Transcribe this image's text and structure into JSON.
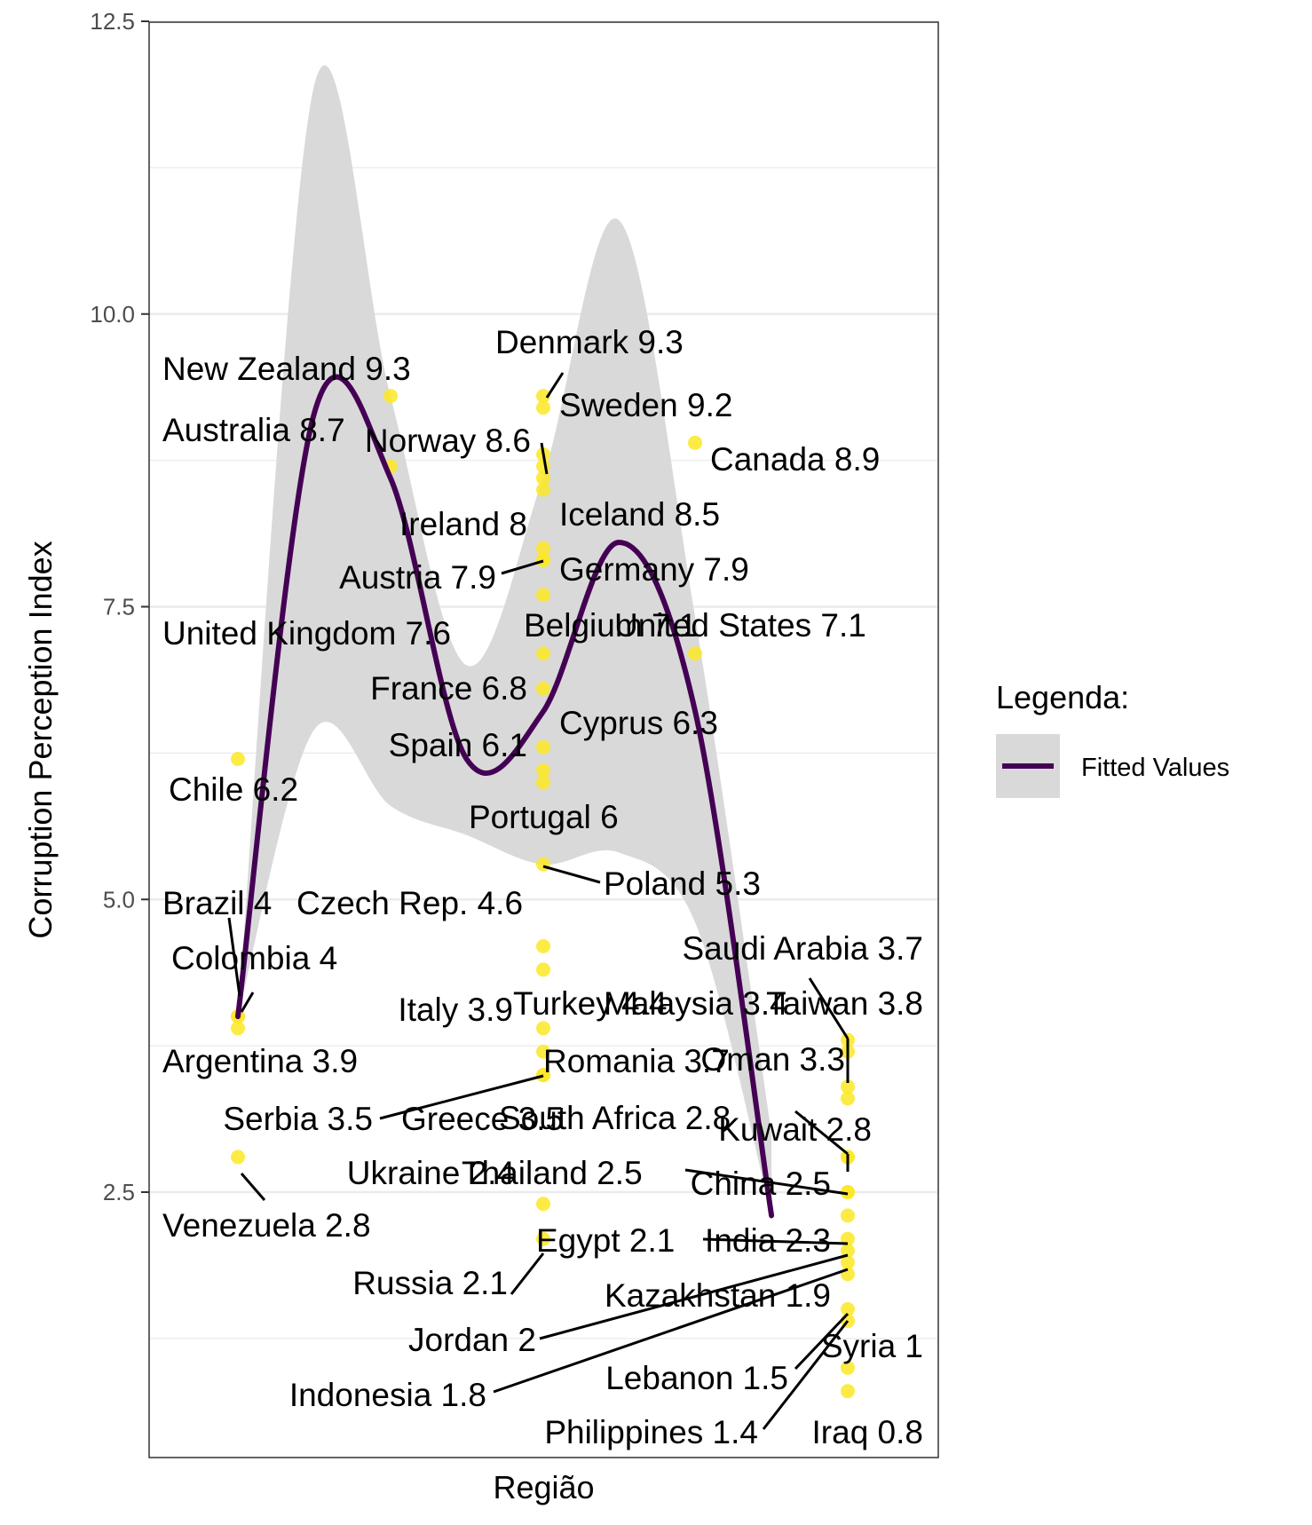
{
  "chart_data": {
    "type": "scatter",
    "xlabel": "Região",
    "ylabel": "Corruption Perception Index",
    "ylim": [
      0.3,
      12.5
    ],
    "y_ticks": [
      "2.5",
      "5.0",
      "7.5",
      "10.0",
      "12.5"
    ],
    "grid": true,
    "legend": {
      "title": "Legenda:",
      "entries": [
        {
          "name": "Fitted Values"
        }
      ],
      "position": "right"
    },
    "colors": {
      "point": "#fde725",
      "fit_line": "#440154",
      "ribbon": "#d9d9d9",
      "grid": "#ebebeb",
      "panel_border": "#333333"
    },
    "points": [
      {
        "group": 1,
        "y": 6.2,
        "label": "Chile 6.2"
      },
      {
        "group": 1,
        "y": 4.0,
        "label": "Brazil 4"
      },
      {
        "group": 1,
        "y": 4.0,
        "label": "Colombia 4"
      },
      {
        "group": 1,
        "y": 3.9,
        "label": "Argentina 3.9"
      },
      {
        "group": 1,
        "y": 2.8,
        "label": "Venezuela 2.8"
      },
      {
        "group": 2,
        "y": 9.3,
        "label": "New Zealand 9.3"
      },
      {
        "group": 2,
        "y": 8.7,
        "label": "Australia 8.7"
      },
      {
        "group": 3,
        "y": 9.3,
        "label": "Denmark 9.3"
      },
      {
        "group": 3,
        "y": 9.2,
        "label": "Sweden 9.2"
      },
      {
        "group": 3,
        "y": 8.8,
        "label": ""
      },
      {
        "group": 3,
        "y": 8.7,
        "label": ""
      },
      {
        "group": 3,
        "y": 8.6,
        "label": "Norway 8.6"
      },
      {
        "group": 3,
        "y": 8.5,
        "label": "Iceland 8.5"
      },
      {
        "group": 3,
        "y": 8.0,
        "label": "Ireland 8"
      },
      {
        "group": 3,
        "y": 7.9,
        "label": "Austria 7.9"
      },
      {
        "group": 3,
        "y": 7.9,
        "label": "Germany 7.9"
      },
      {
        "group": 3,
        "y": 7.6,
        "label": "United Kingdom 7.6"
      },
      {
        "group": 3,
        "y": 7.1,
        "label": "Belgium 7.1"
      },
      {
        "group": 3,
        "y": 6.8,
        "label": "France 6.8"
      },
      {
        "group": 3,
        "y": 6.3,
        "label": "Cyprus 6.3"
      },
      {
        "group": 3,
        "y": 6.1,
        "label": "Spain 6.1"
      },
      {
        "group": 3,
        "y": 6.0,
        "label": "Portugal 6"
      },
      {
        "group": 3,
        "y": 5.3,
        "label": "Poland 5.3"
      },
      {
        "group": 3,
        "y": 4.6,
        "label": "Czech Rep. 4.6"
      },
      {
        "group": 3,
        "y": 4.4,
        "label": "Turkey 4.4"
      },
      {
        "group": 3,
        "y": 3.9,
        "label": "Italy 3.9"
      },
      {
        "group": 3,
        "y": 3.7,
        "label": "Romania 3.7"
      },
      {
        "group": 3,
        "y": 3.5,
        "label": "Serbia 3.5"
      },
      {
        "group": 3,
        "y": 3.5,
        "label": "Greece 3.5"
      },
      {
        "group": 3,
        "y": 2.4,
        "label": "Ukraine 2.4"
      },
      {
        "group": 3,
        "y": 2.1,
        "label": "Russia 2.1"
      },
      {
        "group": 4,
        "y": 8.9,
        "label": "Canada 8.9"
      },
      {
        "group": 4,
        "y": 7.1,
        "label": "United States 7.1"
      },
      {
        "group": 5,
        "y": 3.8,
        "label": "Taiwan 3.8"
      },
      {
        "group": 5,
        "y": 3.7,
        "label": "Saudi Arabia 3.7"
      },
      {
        "group": 5,
        "y": 3.4,
        "label": "Malaysia 3.4"
      },
      {
        "group": 5,
        "y": 3.3,
        "label": "Oman 3.3"
      },
      {
        "group": 5,
        "y": 2.8,
        "label": "South Africa 2.8"
      },
      {
        "group": 5,
        "y": 2.8,
        "label": "Kuwait 2.8"
      },
      {
        "group": 5,
        "y": 2.5,
        "label": "Thailand 2.5"
      },
      {
        "group": 5,
        "y": 2.5,
        "label": "China 2.5"
      },
      {
        "group": 5,
        "y": 2.3,
        "label": "India 2.3"
      },
      {
        "group": 5,
        "y": 2.1,
        "label": "Egypt 2.1"
      },
      {
        "group": 5,
        "y": 2.0,
        "label": "Jordan 2"
      },
      {
        "group": 5,
        "y": 1.9,
        "label": "Kazakhstan 1.9"
      },
      {
        "group": 5,
        "y": 1.8,
        "label": "Indonesia 1.8"
      },
      {
        "group": 5,
        "y": 1.5,
        "label": "Lebanon 1.5"
      },
      {
        "group": 5,
        "y": 1.4,
        "label": "Philippines 1.4"
      },
      {
        "group": 5,
        "y": 1.0,
        "label": "Syria 1"
      },
      {
        "group": 5,
        "y": 0.8,
        "label": "Iraq 0.8"
      }
    ],
    "fitted_line": [
      {
        "x": 1.0,
        "y": 4.0
      },
      {
        "x": 1.5,
        "y": 9.15
      },
      {
        "x": 2.0,
        "y": 8.6
      },
      {
        "x": 2.5,
        "y": 6.2
      },
      {
        "x": 3.0,
        "y": 6.6
      },
      {
        "x": 3.5,
        "y": 8.05
      },
      {
        "x": 4.0,
        "y": 6.6
      },
      {
        "x": 4.5,
        "y": 2.3
      }
    ],
    "ribbon_upper": [
      {
        "x": 1.0,
        "y": 4.0
      },
      {
        "x": 1.5,
        "y": 11.95
      },
      {
        "x": 2.0,
        "y": 9.3
      },
      {
        "x": 2.5,
        "y": 7.0
      },
      {
        "x": 3.0,
        "y": 8.6
      },
      {
        "x": 3.5,
        "y": 10.8
      },
      {
        "x": 4.0,
        "y": 7.4
      },
      {
        "x": 4.5,
        "y": 3.0
      }
    ],
    "ribbon_lower": [
      {
        "x": 1.0,
        "y": 4.0
      },
      {
        "x": 1.5,
        "y": 6.45
      },
      {
        "x": 2.0,
        "y": 5.8
      },
      {
        "x": 2.5,
        "y": 5.55
      },
      {
        "x": 3.0,
        "y": 5.3
      },
      {
        "x": 3.5,
        "y": 5.4
      },
      {
        "x": 4.0,
        "y": 4.8
      },
      {
        "x": 4.5,
        "y": 2.3
      }
    ]
  }
}
